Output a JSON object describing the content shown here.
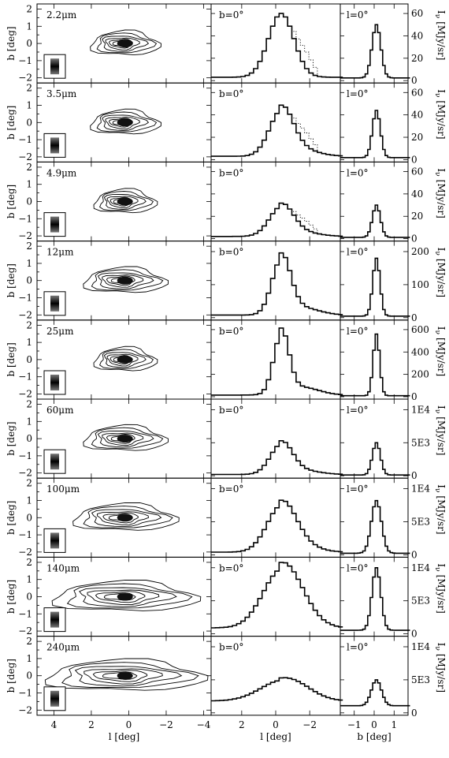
{
  "chart_data": {
    "type": "line",
    "rows": [
      {
        "wavelength": "2.2μm",
        "lon_label": "b=0°",
        "lat_label": "l=0°",
        "yticks": [
          "0",
          "20",
          "40",
          "60"
        ],
        "ymax": 65,
        "peak": 60,
        "peak_b": 50,
        "wing": 4,
        "dotted": true
      },
      {
        "wavelength": "3.5μm",
        "lon_label": "b=0°",
        "lat_label": "l=0°",
        "yticks": [
          "0",
          "20",
          "40",
          "60"
        ],
        "ymax": 65,
        "peak": 46,
        "peak_b": 44,
        "wing": 3,
        "dotted": true
      },
      {
        "wavelength": "4.9μm",
        "lon_label": "b=0°",
        "lat_label": "l=0°",
        "yticks": [
          "0",
          "20",
          "40",
          "60"
        ],
        "ymax": 65,
        "peak": 30,
        "peak_b": 30,
        "wing": 2,
        "dotted": true
      },
      {
        "wavelength": "12μm",
        "lon_label": "b=0°",
        "lat_label": "l=0°",
        "yticks": [
          "0",
          "100",
          "200"
        ],
        "ymax": 220,
        "peak": 185,
        "peak_b": 180,
        "wing": 8,
        "dotted": false
      },
      {
        "wavelength": "25μm",
        "lon_label": "b=0°",
        "lat_label": "l=0°",
        "yticks": [
          "0",
          "200",
          "400",
          "600"
        ],
        "ymax": 650,
        "peak": 580,
        "peak_b": 560,
        "wing": 15,
        "dotted": false
      },
      {
        "wavelength": "60μm",
        "lon_label": "b=0°",
        "lat_label": "l=0°",
        "yticks": [
          "0",
          "5E3",
          "1E4"
        ],
        "ymax": 11000,
        "peak": 5000,
        "peak_b": 5000,
        "wing": 200,
        "dotted": false
      },
      {
        "wavelength": "100μm",
        "lon_label": "b=0°",
        "lat_label": "l=0°",
        "yticks": [
          "0",
          "5E3",
          "1E4"
        ],
        "ymax": 11000,
        "peak": 7800,
        "peak_b": 8200,
        "wing": 400,
        "dotted": false
      },
      {
        "wavelength": "140μm",
        "lon_label": "b=0°",
        "lat_label": "l=0°",
        "yticks": [
          "0",
          "5E3",
          "1E4"
        ],
        "ymax": 11000,
        "peak": 10200,
        "peak_b": 10000,
        "wing": 900,
        "dotted": false
      },
      {
        "wavelength": "240μm",
        "lon_label": "b=0°",
        "lat_label": "l=0°",
        "yticks": [
          "0",
          "5E3",
          "1E4"
        ],
        "ymax": 11000,
        "peak": 5000,
        "peak_b": 5000,
        "wing": 1800,
        "dotted": false
      }
    ],
    "map_ylabel": "b [deg]",
    "map_yticks": [
      "2",
      "1",
      "0",
      "−1",
      "−2"
    ],
    "map_xlabel": "l [deg]",
    "map_xticks": [
      "4",
      "2",
      "0",
      "−2",
      "−4"
    ],
    "lon_xlabel": "l [deg]",
    "lon_xticks": [
      "2",
      "0",
      "−2"
    ],
    "lat_xlabel": "b [deg]",
    "lat_xticks": [
      "−1",
      "0",
      "1"
    ],
    "right_ylabel": "Iν [MJy/sr]",
    "right_ylabel_main": "I",
    "right_ylabel_sub": "ν",
    "right_ylabel_unit": "[MJy/sr]"
  }
}
